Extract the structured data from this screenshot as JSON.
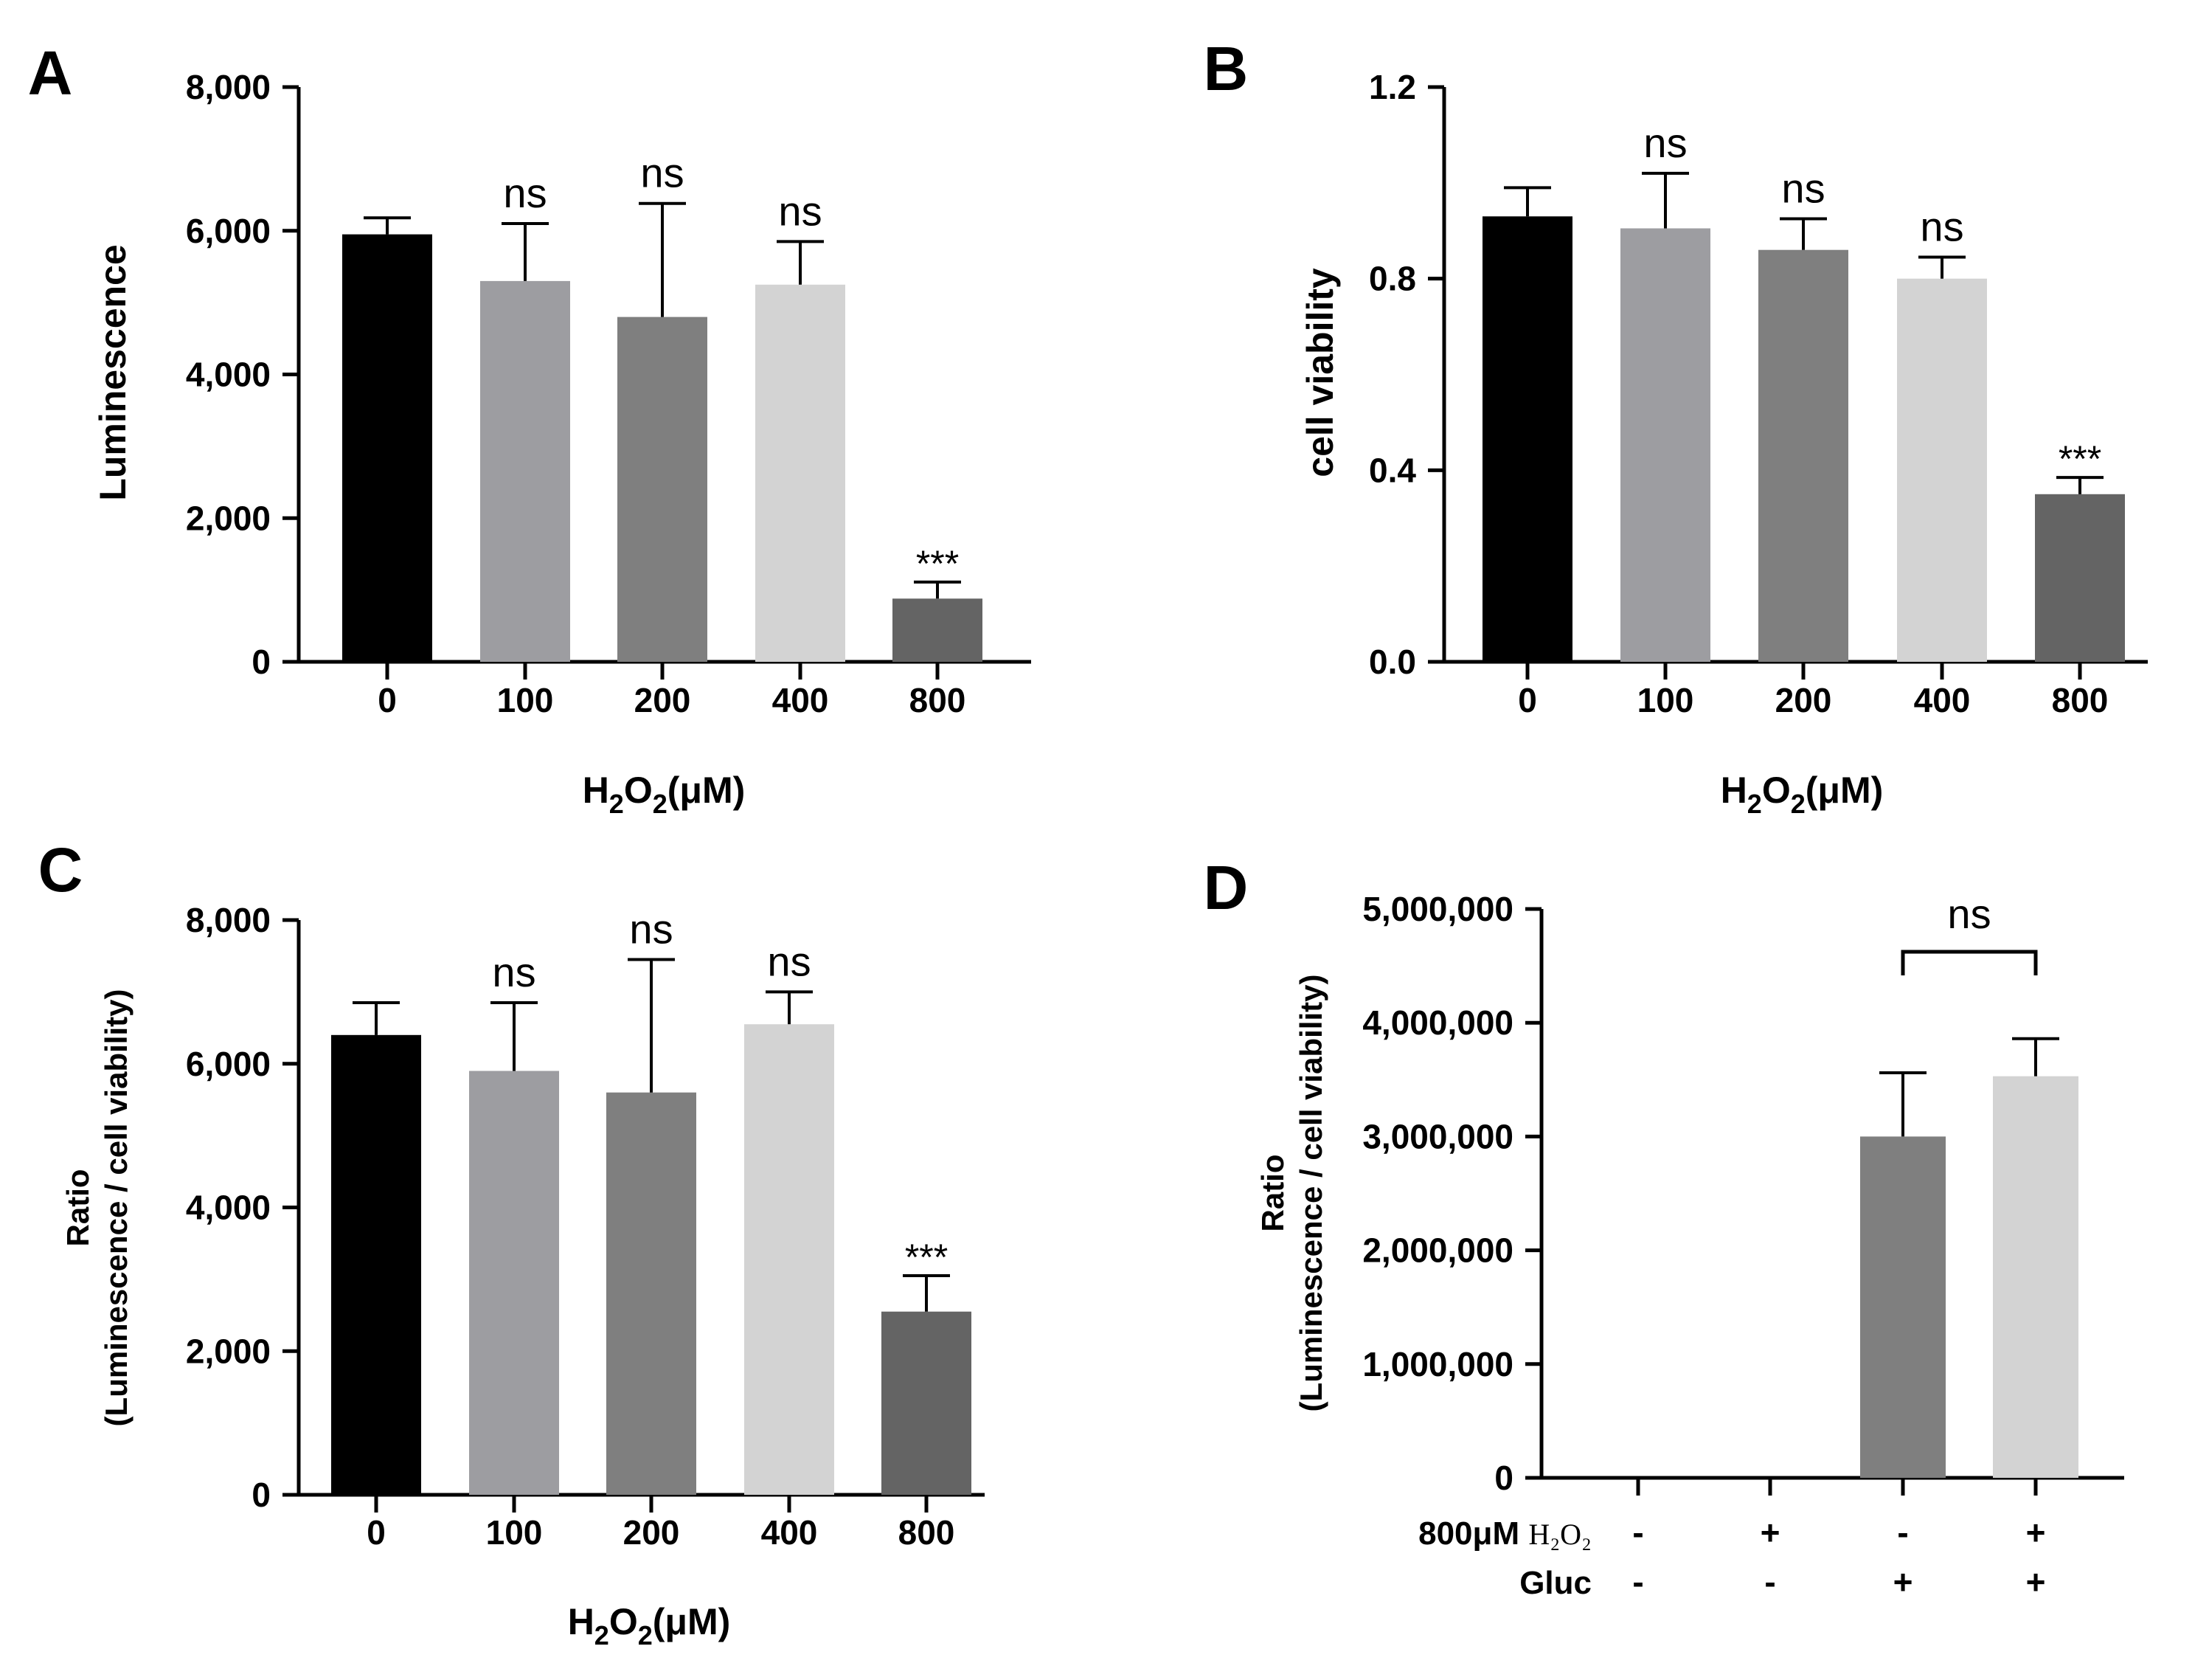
{
  "colors": {
    "axis": "#000000",
    "bar0": "#000000",
    "bar100": "#9d9da1",
    "bar200": "#7f7f7f",
    "bar400": "#d3d3d3",
    "bar800": "#646464",
    "gluc": "#7f7f7f",
    "gluc_h2o2": "#d3d3d3"
  },
  "chart_data": [
    {
      "panel": "A",
      "type": "bar",
      "categories": [
        "0",
        "100",
        "200",
        "400",
        "800"
      ],
      "values": [
        5950,
        5300,
        4800,
        5250,
        880
      ],
      "errors": [
        230,
        800,
        1580,
        600,
        230
      ],
      "significance": [
        "",
        "ns",
        "ns",
        "ns",
        "***"
      ],
      "ylabel": "Luminescence",
      "xlabel": "H2O2(μM)",
      "xlabel_parts": {
        "main": "H",
        "sub1": "2",
        "mid": "O",
        "sub2": "2",
        "end": "(μM)"
      },
      "ylim": [
        0,
        8000
      ],
      "yticks": [
        0,
        2000,
        4000,
        6000,
        8000
      ],
      "ytick_labels": [
        "0",
        "2,000",
        "4,000",
        "6,000",
        "8,000"
      ]
    },
    {
      "panel": "B",
      "type": "bar",
      "categories": [
        "0",
        "100",
        "200",
        "400",
        "800"
      ],
      "values": [
        0.93,
        0.905,
        0.86,
        0.8,
        0.35
      ],
      "errors": [
        0.06,
        0.115,
        0.065,
        0.045,
        0.035
      ],
      "significance": [
        "",
        "ns",
        "ns",
        "ns",
        "***"
      ],
      "ylabel": "cell viability",
      "xlabel": "H2O2(μM)",
      "xlabel_parts": {
        "main": "H",
        "sub1": "2",
        "mid": "O",
        "sub2": "2",
        "end": "(μM)"
      },
      "ylim": [
        0,
        1.2
      ],
      "yticks": [
        0,
        0.4,
        0.8,
        1.2
      ],
      "ytick_labels": [
        "0.0",
        "0.4",
        "0.8",
        "1.2"
      ]
    },
    {
      "panel": "C",
      "type": "bar",
      "categories": [
        "0",
        "100",
        "200",
        "400",
        "800"
      ],
      "values": [
        6400,
        5900,
        5600,
        6550,
        2550
      ],
      "errors": [
        450,
        950,
        1850,
        450,
        500
      ],
      "significance": [
        "",
        "ns",
        "ns",
        "ns",
        "***"
      ],
      "ylabel_line1": "Ratio",
      "ylabel_line2": "(Luminescence / cell viability)",
      "xlabel": "H2O2(μM)",
      "xlabel_parts": {
        "main": "H",
        "sub1": "2",
        "mid": "O",
        "sub2": "2",
        "end": "(μM)"
      },
      "ylim": [
        0,
        8000
      ],
      "yticks": [
        0,
        2000,
        4000,
        6000,
        8000
      ],
      "ytick_labels": [
        "0",
        "2,000",
        "4,000",
        "6,000",
        "8,000"
      ]
    },
    {
      "panel": "D",
      "type": "bar",
      "groups": 4,
      "values": [
        0,
        0,
        3000000,
        3530000
      ],
      "errors": [
        0,
        0,
        560000,
        330000
      ],
      "bracket": {
        "from": 2,
        "to": 3,
        "label": "ns"
      },
      "condition_rows": [
        {
          "label_main": "800μM ",
          "label_serif": "H₂O₂",
          "signs": [
            "-",
            "+",
            "-",
            "+"
          ]
        },
        {
          "label_main": "Gluc",
          "label_serif": "",
          "signs": [
            "-",
            "-",
            "+",
            "+"
          ]
        }
      ],
      "ylabel_line1": "Ratio",
      "ylabel_line2": "(Luminescence / cell viability)",
      "ylim": [
        0,
        5000000
      ],
      "yticks": [
        0,
        1000000,
        2000000,
        3000000,
        4000000,
        5000000
      ],
      "ytick_labels": [
        "0",
        "1,000,000",
        "2,000,000",
        "3,000,000",
        "4,000,000",
        "5,000,000"
      ]
    }
  ]
}
